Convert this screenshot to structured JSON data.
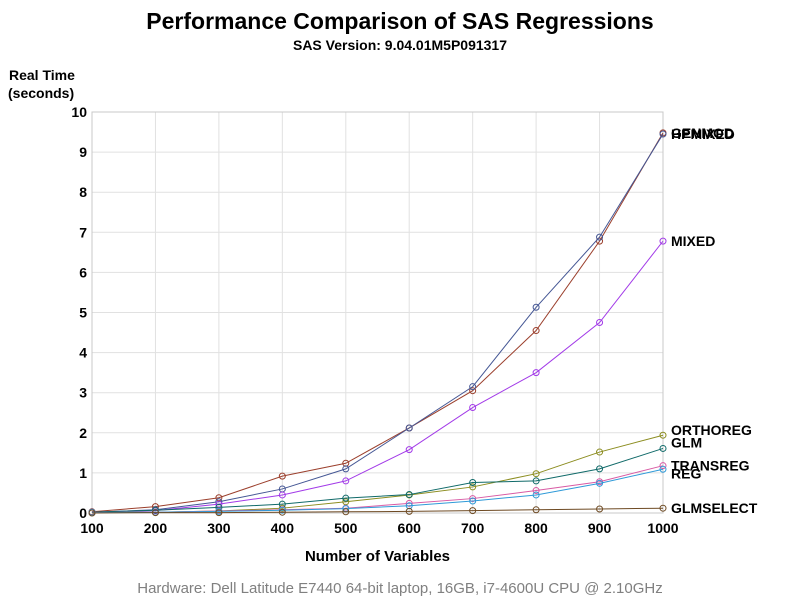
{
  "chart_data": {
    "type": "line",
    "title": "Performance Comparison of SAS Regressions",
    "subtitle": "SAS Version: 9.04.01M5P091317",
    "ylabel_lines": [
      "Real Time",
      "(seconds)"
    ],
    "xlabel": "Number of Variables",
    "footnote": "Hardware: Dell Latitude E7440 64-bit laptop, 16GB, i7-4600U CPU @ 2.10GHz",
    "x": [
      100,
      200,
      300,
      400,
      500,
      600,
      700,
      800,
      900,
      1000
    ],
    "xlim": [
      100,
      1000
    ],
    "ylim": [
      0,
      10
    ],
    "xticks": [
      100,
      200,
      300,
      400,
      500,
      600,
      700,
      800,
      900,
      1000
    ],
    "yticks": [
      0,
      1,
      2,
      3,
      4,
      5,
      6,
      7,
      8,
      9,
      10
    ],
    "grid": true,
    "legend": "end-of-line labels",
    "series": [
      {
        "name": "GENMOD",
        "color": "#9b3f2c",
        "values": [
          0.03,
          0.16,
          0.38,
          0.92,
          1.24,
          2.12,
          3.05,
          4.55,
          6.78,
          9.48
        ]
      },
      {
        "name": "HPMIXED",
        "color": "#445694",
        "values": [
          0.02,
          0.08,
          0.28,
          0.6,
          1.1,
          2.12,
          3.15,
          5.13,
          6.88,
          9.45
        ]
      },
      {
        "name": "MIXED",
        "color": "#a23ae8",
        "values": [
          0.02,
          0.06,
          0.22,
          0.45,
          0.8,
          1.58,
          2.63,
          3.5,
          4.75,
          6.78
        ]
      },
      {
        "name": "ORTHOREG",
        "color": "#8c8d20",
        "values": [
          0.01,
          0.02,
          0.05,
          0.12,
          0.28,
          0.45,
          0.65,
          0.98,
          1.52,
          1.94
        ]
      },
      {
        "name": "GLM",
        "color": "#106a69",
        "values": [
          0.02,
          0.07,
          0.14,
          0.22,
          0.37,
          0.46,
          0.76,
          0.8,
          1.1,
          1.61
        ]
      },
      {
        "name": "TRANSREG",
        "color": "#d85aa4",
        "values": [
          0.01,
          0.02,
          0.05,
          0.08,
          0.12,
          0.24,
          0.36,
          0.56,
          0.78,
          1.18
        ]
      },
      {
        "name": "REG",
        "color": "#2f9ad8",
        "values": [
          0.01,
          0.02,
          0.04,
          0.07,
          0.11,
          0.18,
          0.3,
          0.45,
          0.74,
          1.09
        ]
      },
      {
        "name": "GLMSELECT",
        "color": "#6e4a23",
        "values": [
          0.0,
          0.01,
          0.01,
          0.02,
          0.03,
          0.04,
          0.06,
          0.08,
          0.1,
          0.12
        ]
      }
    ]
  }
}
